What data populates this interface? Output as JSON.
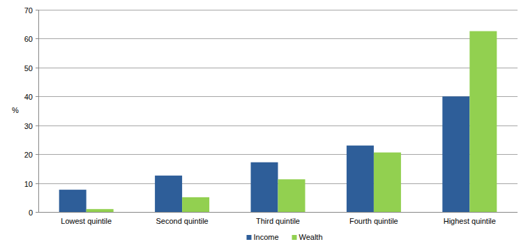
{
  "chart_data": {
    "type": "bar",
    "y_label": "%",
    "categories": [
      "Lowest quintile",
      "Second quintile",
      "Third quintile",
      "Fourth quintile",
      "Highest quintile"
    ],
    "series": [
      {
        "name": "Income",
        "color": "#2e5e99",
        "values": [
          7.7,
          12.6,
          17.2,
          23.0,
          40.0
        ]
      },
      {
        "name": "Wealth",
        "color": "#92d050",
        "values": [
          1.0,
          5.1,
          11.3,
          20.6,
          62.6
        ]
      }
    ],
    "ylim": [
      0,
      70
    ],
    "yticks": [
      0,
      10,
      20,
      30,
      40,
      50,
      60,
      70
    ],
    "grid": true,
    "legend": "bottom"
  }
}
